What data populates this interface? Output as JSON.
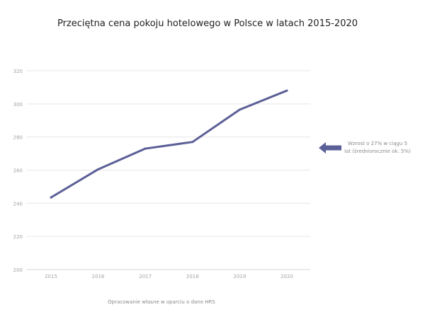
{
  "chart_data": {
    "type": "line",
    "title": "Przeciętna cena pokoju hotelowego w Polsce w latach 2015-2020",
    "categories": [
      "2015",
      "2016",
      "2017",
      "2018",
      "2019",
      "2020"
    ],
    "series": [
      {
        "values": [
          243.5,
          260.5,
          273,
          277,
          296.5,
          308
        ]
      }
    ],
    "xlabel": "",
    "ylabel": "",
    "ylim": [
      200,
      320
    ],
    "yticks": [
      200,
      220,
      240,
      260,
      280,
      300,
      320
    ],
    "grid": true,
    "legend": "none",
    "line_color": "#5b5f97",
    "annotation": {
      "lines": [
        "Wzrost o 27% w ciągu 5",
        "lat (średniorocznie ok. 5%)"
      ],
      "arrow": "left",
      "color": "#5b5f97"
    },
    "source": "Opracowanie własne w oparciu o dane HRS"
  }
}
